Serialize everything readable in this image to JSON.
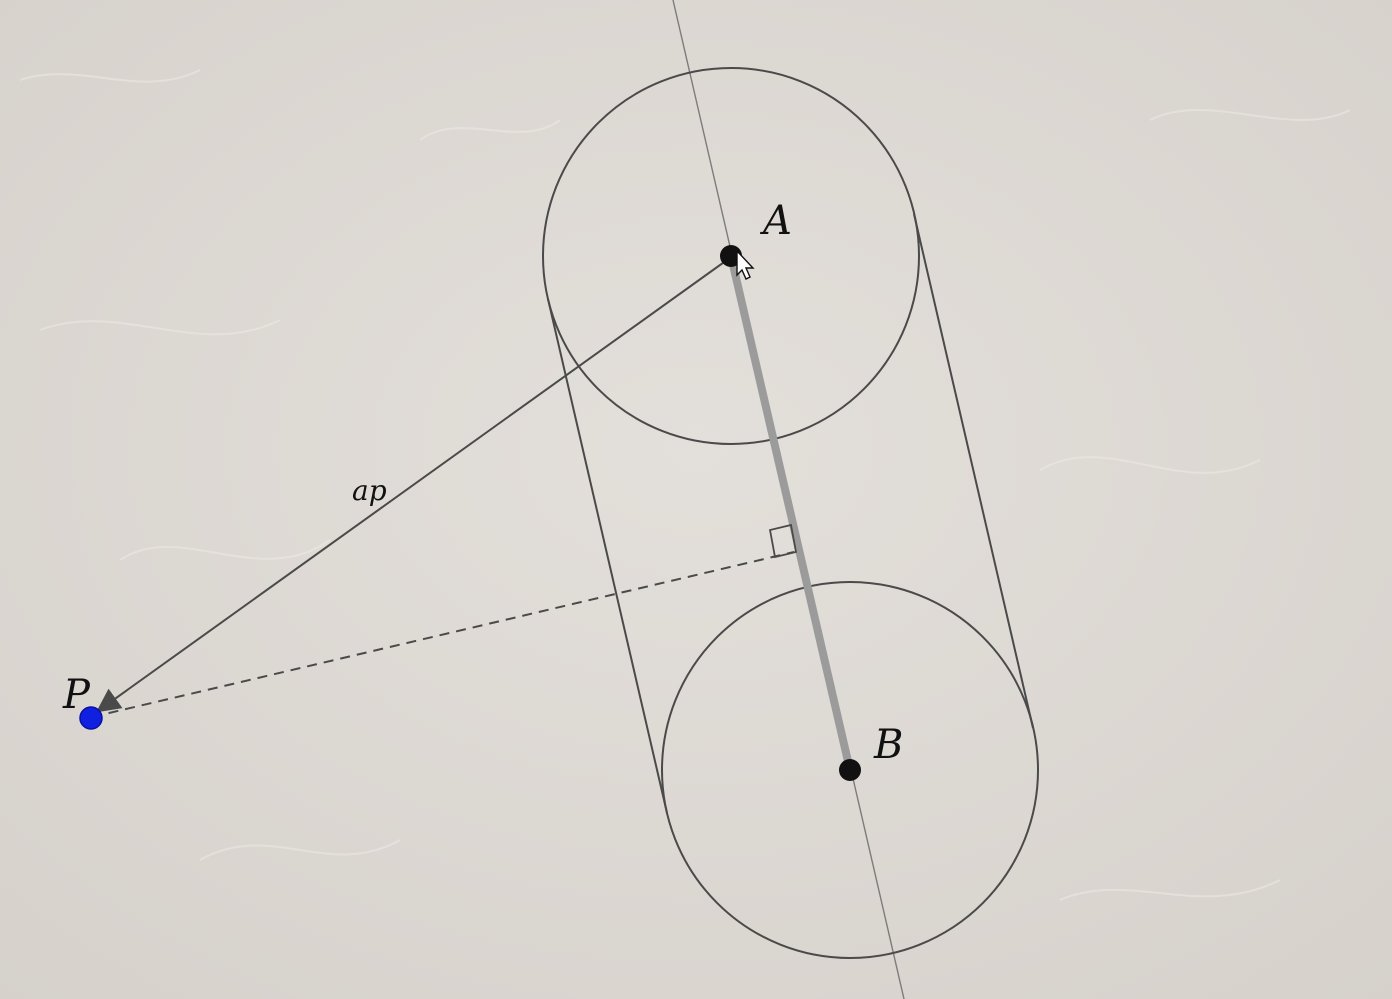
{
  "diagram": {
    "points": {
      "A": {
        "label": "A",
        "color": "#111111"
      },
      "B": {
        "label": "B",
        "color": "#111111"
      },
      "P": {
        "label": "P",
        "color": "#1020e0"
      }
    },
    "vector_label": "ap",
    "colors": {
      "paper": "#ddd8d2",
      "paper_light": "#e6e2dd",
      "ink": "#4a4a4a",
      "segment": "#9b9b9b",
      "axis": "#7c7c7c"
    }
  }
}
